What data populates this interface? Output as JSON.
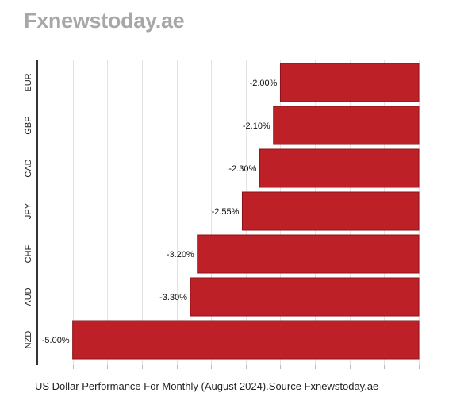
{
  "header": {
    "brand": "Fxnewstoday.ae"
  },
  "caption": "US Dollar Performance For Monthly (August 2024).Source Fxnewstoday.ae",
  "colors": {
    "bar": "#bd2026",
    "grid": "#e3e3e3",
    "axis": "#333333"
  },
  "chart_data": {
    "type": "bar",
    "orientation": "horizontal",
    "categories": [
      "EUR",
      "GBP",
      "CAD",
      "JPY",
      "CHF",
      "AUD",
      "NZD"
    ],
    "values": [
      -2.0,
      -2.1,
      -2.3,
      -2.55,
      -3.2,
      -3.3,
      -5.0
    ],
    "labels": [
      "-2.00%",
      "-2.10%",
      "-2.30%",
      "-2.55%",
      "-3.20%",
      "-3.30%",
      "-5.00%"
    ],
    "xlim": [
      -5.5,
      0
    ],
    "grid": true,
    "title": "",
    "xlabel": "",
    "ylabel": ""
  }
}
